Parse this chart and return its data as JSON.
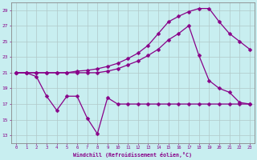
{
  "background_color": "#c8eef0",
  "grid_color": "#b0c8c8",
  "line_color": "#880088",
  "xlabel": "Windchill (Refroidissement éolien,°C)",
  "xlim": [
    -0.5,
    23.5
  ],
  "ylim": [
    12,
    30
  ],
  "yticks": [
    13,
    15,
    17,
    19,
    21,
    23,
    25,
    27,
    29
  ],
  "xticks": [
    0,
    1,
    2,
    3,
    4,
    5,
    6,
    7,
    8,
    9,
    10,
    11,
    12,
    13,
    14,
    15,
    16,
    17,
    18,
    19,
    20,
    21,
    22,
    23
  ],
  "line1_x": [
    0,
    1,
    2,
    3,
    4,
    5,
    6,
    7,
    8,
    9,
    10,
    11,
    12,
    13,
    14,
    15,
    16,
    17,
    18,
    19,
    20,
    21,
    22,
    23
  ],
  "line1_y": [
    21.0,
    21.0,
    20.5,
    18.0,
    16.2,
    18.0,
    18.0,
    15.2,
    13.2,
    17.8,
    17.0,
    17.0,
    17.0,
    17.0,
    17.0,
    17.0,
    17.0,
    17.0,
    17.0,
    17.0,
    17.0,
    17.0,
    17.0,
    17.0
  ],
  "line2_x": [
    0,
    1,
    2,
    3,
    4,
    5,
    6,
    7,
    8,
    9,
    10,
    11,
    12,
    13,
    14,
    15,
    16,
    17,
    18,
    19,
    20,
    21,
    22,
    23
  ],
  "line2_y": [
    21.0,
    21.0,
    21.0,
    21.0,
    21.0,
    21.0,
    21.0,
    21.0,
    21.0,
    21.2,
    21.5,
    22.0,
    22.5,
    23.2,
    24.0,
    25.2,
    26.0,
    27.0,
    23.2,
    20.0,
    19.0,
    18.5,
    17.2,
    17.0
  ],
  "line3_x": [
    0,
    1,
    2,
    3,
    4,
    5,
    6,
    7,
    8,
    9,
    10,
    11,
    12,
    13,
    14,
    15,
    16,
    17,
    18,
    19,
    20,
    21,
    22,
    23
  ],
  "line3_y": [
    21.0,
    21.0,
    21.0,
    21.0,
    21.0,
    21.0,
    21.2,
    21.3,
    21.5,
    21.8,
    22.2,
    22.8,
    23.5,
    24.5,
    26.0,
    27.5,
    28.2,
    28.8,
    29.2,
    29.2,
    27.5,
    26.0,
    25.0,
    24.0
  ]
}
